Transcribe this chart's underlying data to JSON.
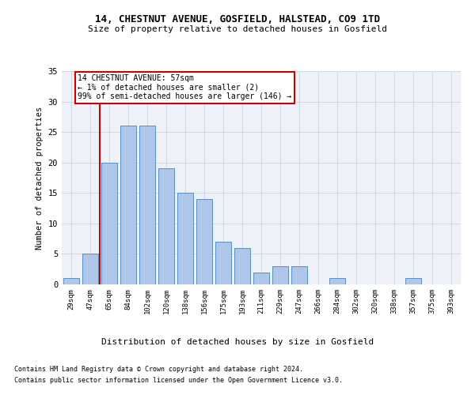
{
  "title1": "14, CHESTNUT AVENUE, GOSFIELD, HALSTEAD, CO9 1TD",
  "title2": "Size of property relative to detached houses in Gosfield",
  "xlabel": "Distribution of detached houses by size in Gosfield",
  "ylabel": "Number of detached properties",
  "bin_labels": [
    "29sqm",
    "47sqm",
    "65sqm",
    "84sqm",
    "102sqm",
    "120sqm",
    "138sqm",
    "156sqm",
    "175sqm",
    "193sqm",
    "211sqm",
    "229sqm",
    "247sqm",
    "266sqm",
    "284sqm",
    "302sqm",
    "320sqm",
    "338sqm",
    "357sqm",
    "375sqm",
    "393sqm"
  ],
  "bar_values": [
    1,
    5,
    20,
    26,
    26,
    19,
    15,
    14,
    7,
    6,
    2,
    3,
    3,
    0,
    1,
    0,
    0,
    0,
    1,
    0,
    0
  ],
  "bar_color": "#aec6e8",
  "bar_edgecolor": "#5a8fc0",
  "bar_width": 0.85,
  "grid_color": "#d0d8e8",
  "bg_color": "#eef2f8",
  "red_line_x": 1.5,
  "red_line_color": "#cc0000",
  "annotation_text": "14 CHESTNUT AVENUE: 57sqm\n← 1% of detached houses are smaller (2)\n99% of semi-detached houses are larger (146) →",
  "annotation_box_color": "#cc0000",
  "ylim": [
    0,
    35
  ],
  "yticks": [
    0,
    5,
    10,
    15,
    20,
    25,
    30,
    35
  ],
  "footer1": "Contains HM Land Registry data © Crown copyright and database right 2024.",
  "footer2": "Contains public sector information licensed under the Open Government Licence v3.0."
}
